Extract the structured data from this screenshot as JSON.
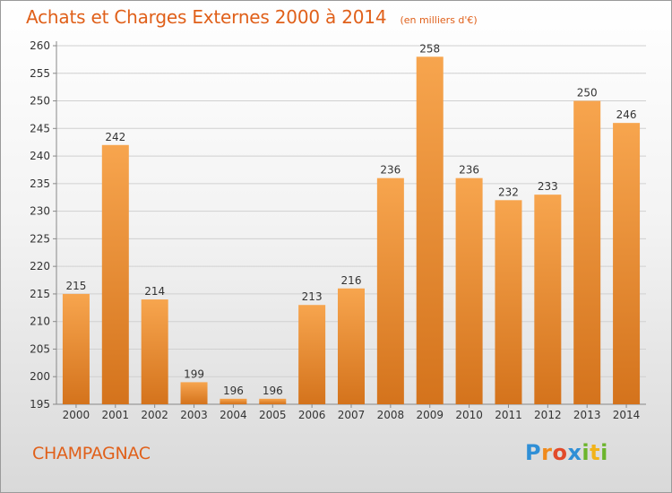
{
  "chart_data": {
    "type": "bar",
    "title": "Achats et Charges Externes 2000 à 2014",
    "unit": "(en milliers d'€)",
    "categories": [
      "2000",
      "2001",
      "2002",
      "2003",
      "2004",
      "2005",
      "2006",
      "2007",
      "2008",
      "2009",
      "2010",
      "2011",
      "2012",
      "2013",
      "2014"
    ],
    "values": [
      215,
      242,
      214,
      199,
      196,
      196,
      213,
      216,
      236,
      258,
      236,
      232,
      233,
      250,
      246
    ],
    "ylim": [
      195,
      260
    ],
    "yticks": [
      195,
      200,
      205,
      210,
      215,
      220,
      225,
      230,
      235,
      240,
      245,
      250,
      255,
      260
    ],
    "grid": true,
    "bar_color_top": "#f7a54e",
    "bar_color_bottom": "#d4731c"
  },
  "commune": "CHAMPAGNAC",
  "logo_text": "Proxiti",
  "colors": {
    "title": "#e0601a",
    "commune": "#e0601a"
  }
}
